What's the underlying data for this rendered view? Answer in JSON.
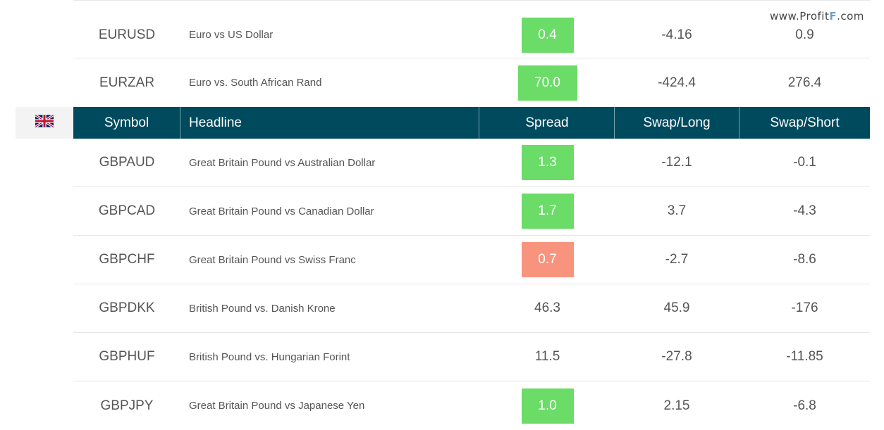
{
  "watermark": {
    "prefix": "www.Profit",
    "accent": "F",
    "suffix": ".com"
  },
  "flag": {
    "icon": "uk-flag-icon"
  },
  "header": {
    "symbol": "Symbol",
    "headline": "Headline",
    "spread": "Spread",
    "swap_long": "Swap/Long",
    "swap_short": "Swap/Short",
    "background": "#004a5e"
  },
  "colors": {
    "spread_green": "#6adc67",
    "spread_red": "#f8937e"
  },
  "rows_top": [
    {
      "symbol": "EURUSD",
      "headline": "Euro vs US Dollar",
      "spread": "0.4",
      "spread_style": "green",
      "swap_long": "-4.16",
      "swap_short": "0.9"
    },
    {
      "symbol": "EURZAR",
      "headline": "Euro vs. South African Rand",
      "spread": "70.0",
      "spread_style": "green-wide",
      "swap_long": "-424.4",
      "swap_short": "276.4"
    }
  ],
  "rows": [
    {
      "symbol": "GBPAUD",
      "headline": "Great Britain Pound vs Australian Dollar",
      "spread": "1.3",
      "spread_style": "green",
      "swap_long": "-12.1",
      "swap_short": "-0.1"
    },
    {
      "symbol": "GBPCAD",
      "headline": "Great Britain Pound vs Canadian Dollar",
      "spread": "1.7",
      "spread_style": "green",
      "swap_long": "3.7",
      "swap_short": "-4.3"
    },
    {
      "symbol": "GBPCHF",
      "headline": "Great Britain Pound vs Swiss Franc",
      "spread": "0.7",
      "spread_style": "red",
      "swap_long": "-2.7",
      "swap_short": "-8.6"
    },
    {
      "symbol": "GBPDKK",
      "headline": "British Pound vs. Danish Krone",
      "spread": "46.3",
      "spread_style": "plain",
      "swap_long": "45.9",
      "swap_short": "-176"
    },
    {
      "symbol": "GBPHUF",
      "headline": "British Pound vs. Hungarian Forint",
      "spread": "11.5",
      "spread_style": "plain",
      "swap_long": "-27.8",
      "swap_short": "-11.85"
    },
    {
      "symbol": "GBPJPY",
      "headline": "Great Britain Pound vs Japanese Yen",
      "spread": "1.0",
      "spread_style": "green",
      "swap_long": "2.15",
      "swap_short": "-6.8"
    }
  ]
}
